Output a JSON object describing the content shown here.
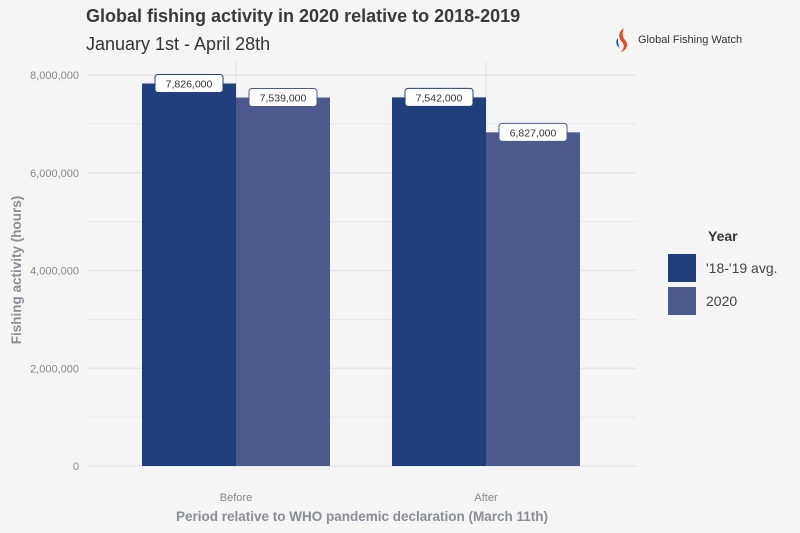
{
  "header": {
    "title": "Global fishing activity in 2020 relative to 2018-2019",
    "subtitle": "January 1st - April 28th",
    "logo_text": "Global Fishing Watch"
  },
  "colors": {
    "series_1": "#213f7d",
    "series_2": "#4c5a8e",
    "grid": "#e3e3e3"
  },
  "legend": {
    "title": "Year"
  },
  "chart_data": {
    "type": "bar",
    "title": "",
    "xlabel": "Period relative to WHO pandemic declaration (March 11th)",
    "ylabel": "Fishing activity (hours)",
    "categories": [
      "Before",
      "After"
    ],
    "series": [
      {
        "name": "'18-'19 avg.",
        "values": [
          7826000,
          7542000
        ],
        "labels": [
          "7,826,000",
          "7,542,000"
        ]
      },
      {
        "name": "2020",
        "values": [
          7539000,
          6827000
        ],
        "labels": [
          "7,539,000",
          "6,827,000"
        ]
      }
    ],
    "ylim": [
      0,
      8000000
    ],
    "yticks": [
      0,
      2000000,
      4000000,
      6000000,
      8000000
    ],
    "ytick_labels": [
      "0",
      "2,000,000",
      "4,000,000",
      "6,000,000",
      "8,000,000"
    ],
    "grid": true,
    "legend_position": "right"
  }
}
